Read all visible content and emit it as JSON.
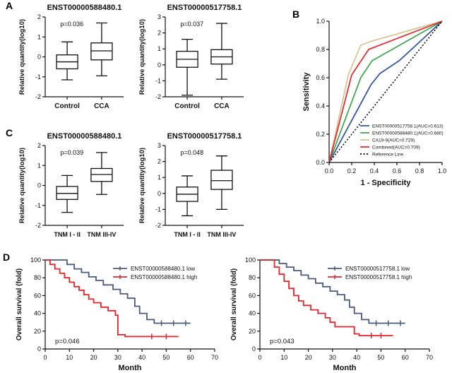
{
  "panels": [
    {
      "label": "A"
    },
    {
      "label": "B"
    },
    {
      "label": "C"
    },
    {
      "label": "D"
    }
  ],
  "colors": {
    "box_line": "#1a1a1a",
    "roc_blue": "#2c4fa3",
    "roc_green": "#3aa64c",
    "roc_tan": "#d9c48f",
    "roc_red": "#e4262c",
    "km_low": "#4a5b7d",
    "km_high": "#e4262c"
  },
  "chart_data": [
    {
      "id": "a1",
      "type": "box",
      "title": "ENST00000588480.1",
      "annotation": "p=0.036",
      "ylabel": "Relative quantity(log10)",
      "ylim": [
        -2,
        2
      ],
      "yticks": [
        -2,
        -1,
        0,
        1,
        2
      ],
      "categories": [
        "Control",
        "CCA"
      ],
      "boxes": [
        {
          "low": -1.15,
          "q1": -0.6,
          "med": -0.25,
          "q3": 0.1,
          "high": 0.75
        },
        {
          "low": -0.95,
          "q1": -0.15,
          "med": 0.3,
          "q3": 0.7,
          "high": 1.7
        }
      ]
    },
    {
      "id": "a2",
      "type": "box",
      "title": "ENST00000517758.1",
      "annotation": "p=0.037",
      "ylabel": "Relative quantity(log10)",
      "ylim": [
        -2,
        3
      ],
      "yticks": [
        -2,
        -1,
        0,
        1,
        2,
        3
      ],
      "categories": [
        "Control",
        "CCA"
      ],
      "boxes": [
        {
          "low": -1.9,
          "q1": -0.15,
          "med": 0.35,
          "q3": 0.85,
          "high": 1.6
        },
        {
          "low": -0.9,
          "q1": 0.05,
          "med": 0.5,
          "q3": 0.95,
          "high": 2.6
        }
      ]
    },
    {
      "id": "b",
      "type": "roc",
      "xlabel": "1 - Specificity",
      "ylabel": "Sensitivity",
      "xlim": [
        0,
        1
      ],
      "ylim": [
        0,
        1
      ],
      "xticks": [
        "0.0",
        "0.2",
        "0.4",
        "0.6",
        "0.8",
        "1.0"
      ],
      "yticks": [
        "0.0",
        "0.2",
        "0.4",
        "0.6",
        "0.8",
        "1.0"
      ],
      "series": [
        {
          "name": "ENST00000517758.1(AUC=0.613)",
          "color": "#2c4fa3",
          "dashed": false,
          "points": [
            [
              0,
              0
            ],
            [
              0.37,
              0.55
            ],
            [
              0.45,
              0.63
            ],
            [
              0.62,
              0.72
            ],
            [
              1,
              1
            ]
          ]
        },
        {
          "name": "ENST00000588480.1(AUC=0.680)",
          "color": "#3aa64c",
          "dashed": false,
          "points": [
            [
              0,
              0
            ],
            [
              0.28,
              0.6
            ],
            [
              0.38,
              0.72
            ],
            [
              1,
              1
            ]
          ]
        },
        {
          "name": "CA19-9(AUC=0.729)",
          "color": "#d9c48f",
          "dashed": false,
          "points": [
            [
              0,
              0
            ],
            [
              0.17,
              0.62
            ],
            [
              0.28,
              0.83
            ],
            [
              0.38,
              0.86
            ],
            [
              1,
              1
            ]
          ]
        },
        {
          "name": "Combined(AUC=0.709)",
          "color": "#e4262c",
          "dashed": false,
          "points": [
            [
              0,
              0
            ],
            [
              0.2,
              0.62
            ],
            [
              0.35,
              0.8
            ],
            [
              1,
              1
            ]
          ]
        },
        {
          "name": "Reference Line",
          "color": "#000000",
          "dashed": true,
          "points": [
            [
              0,
              0
            ],
            [
              1,
              1
            ]
          ]
        }
      ],
      "legend_position": "bottom-right"
    },
    {
      "id": "c1",
      "type": "box",
      "title": "ENST00000588480.1",
      "annotation": "p=0.039",
      "ylabel": "Relative quantity(log10)",
      "ylim": [
        -2,
        2
      ],
      "yticks": [
        -2,
        -1,
        0,
        1,
        2
      ],
      "categories": [
        "TNM I - II",
        "TNM III-IV"
      ],
      "boxes": [
        {
          "low": -1.35,
          "q1": -0.7,
          "med": -0.4,
          "q3": -0.05,
          "high": 0.5
        },
        {
          "low": -0.45,
          "q1": 0.2,
          "med": 0.55,
          "q3": 0.85,
          "high": 1.65
        }
      ]
    },
    {
      "id": "c2",
      "type": "box",
      "title": "ENST00000517758.1",
      "annotation": "p=0.048",
      "ylabel": "Relative quantity(log10)",
      "ylim": [
        -2,
        3
      ],
      "yticks": [
        -2,
        -1,
        0,
        1,
        2,
        3
      ],
      "categories": [
        "TNM I - II",
        "TNM III-IV"
      ],
      "boxes": [
        {
          "low": -1.4,
          "q1": -0.5,
          "med": -0.05,
          "q3": 0.4,
          "high": 1.1
        },
        {
          "low": -1.0,
          "q1": 0.25,
          "med": 0.8,
          "q3": 1.45,
          "high": 2.35
        }
      ]
    },
    {
      "id": "d1",
      "type": "km",
      "xlabel": "Month",
      "ylabel": "Overall survival (fold)",
      "annotation": "p=0.046",
      "xlim": [
        0,
        70
      ],
      "ylim": [
        0,
        100
      ],
      "xticks": [
        0,
        10,
        20,
        30,
        40,
        50,
        60,
        70
      ],
      "yticks": [
        0,
        20,
        40,
        60,
        80,
        100
      ],
      "series": [
        {
          "name": "ENST00000588480.1 low",
          "color": "#4a5b7d",
          "steps": [
            [
              0,
              100
            ],
            [
              7,
              100
            ],
            [
              9,
              95
            ],
            [
              12,
              90
            ],
            [
              15,
              86
            ],
            [
              18,
              81
            ],
            [
              21,
              77
            ],
            [
              24,
              72
            ],
            [
              28,
              67
            ],
            [
              31,
              62
            ],
            [
              34,
              57
            ],
            [
              37,
              48
            ],
            [
              39,
              40
            ],
            [
              42,
              33
            ],
            [
              45,
              29
            ],
            [
              60,
              29
            ]
          ],
          "censors": [
            [
              48,
              29
            ],
            [
              53,
              29
            ],
            [
              58,
              29
            ]
          ]
        },
        {
          "name": "ENST00000588480.1 high",
          "color": "#e4262c",
          "steps": [
            [
              0,
              100
            ],
            [
              2,
              95
            ],
            [
              4,
              90
            ],
            [
              6,
              85
            ],
            [
              8,
              80
            ],
            [
              10,
              75
            ],
            [
              12,
              70
            ],
            [
              14,
              66
            ],
            [
              16,
              61
            ],
            [
              18,
              56
            ],
            [
              20,
              52
            ],
            [
              23,
              47
            ],
            [
              26,
              43
            ],
            [
              29,
              38
            ],
            [
              30,
              16
            ],
            [
              33,
              14
            ],
            [
              55,
              14
            ]
          ],
          "censors": [
            [
              44,
              14
            ],
            [
              50,
              14
            ]
          ]
        }
      ]
    },
    {
      "id": "d2",
      "type": "km",
      "xlabel": "Month",
      "ylabel": "Overall survival (fold)",
      "annotation": "p=0.043",
      "xlim": [
        0,
        70
      ],
      "ylim": [
        0,
        100
      ],
      "xticks": [
        0,
        10,
        20,
        30,
        40,
        50,
        60,
        70
      ],
      "yticks": [
        0,
        20,
        40,
        60,
        80,
        100
      ],
      "series": [
        {
          "name": "ENST00000517758.1 low",
          "color": "#4a5b7d",
          "steps": [
            [
              0,
              100
            ],
            [
              6,
              100
            ],
            [
              8,
              96
            ],
            [
              11,
              92
            ],
            [
              14,
              88
            ],
            [
              17,
              83
            ],
            [
              20,
              79
            ],
            [
              23,
              74
            ],
            [
              26,
              70
            ],
            [
              29,
              65
            ],
            [
              32,
              61
            ],
            [
              35,
              55
            ],
            [
              37,
              47
            ],
            [
              39,
              40
            ],
            [
              42,
              33
            ],
            [
              45,
              29
            ],
            [
              60,
              29
            ]
          ],
          "censors": [
            [
              48,
              29
            ],
            [
              53,
              29
            ],
            [
              58,
              29
            ]
          ]
        },
        {
          "name": "ENST00000517758.1 high",
          "color": "#e4262c",
          "steps": [
            [
              0,
              100
            ],
            [
              4,
              100
            ],
            [
              6,
              92
            ],
            [
              8,
              84
            ],
            [
              10,
              76
            ],
            [
              12,
              68
            ],
            [
              14,
              60
            ],
            [
              16,
              54
            ],
            [
              18,
              49
            ],
            [
              21,
              44
            ],
            [
              24,
              40
            ],
            [
              27,
              35
            ],
            [
              29,
              30
            ],
            [
              31,
              25
            ],
            [
              37,
              25
            ],
            [
              39,
              17
            ],
            [
              41,
              15
            ],
            [
              55,
              15
            ]
          ],
          "censors": [
            [
              46,
              15
            ],
            [
              50,
              15
            ]
          ]
        }
      ]
    }
  ]
}
